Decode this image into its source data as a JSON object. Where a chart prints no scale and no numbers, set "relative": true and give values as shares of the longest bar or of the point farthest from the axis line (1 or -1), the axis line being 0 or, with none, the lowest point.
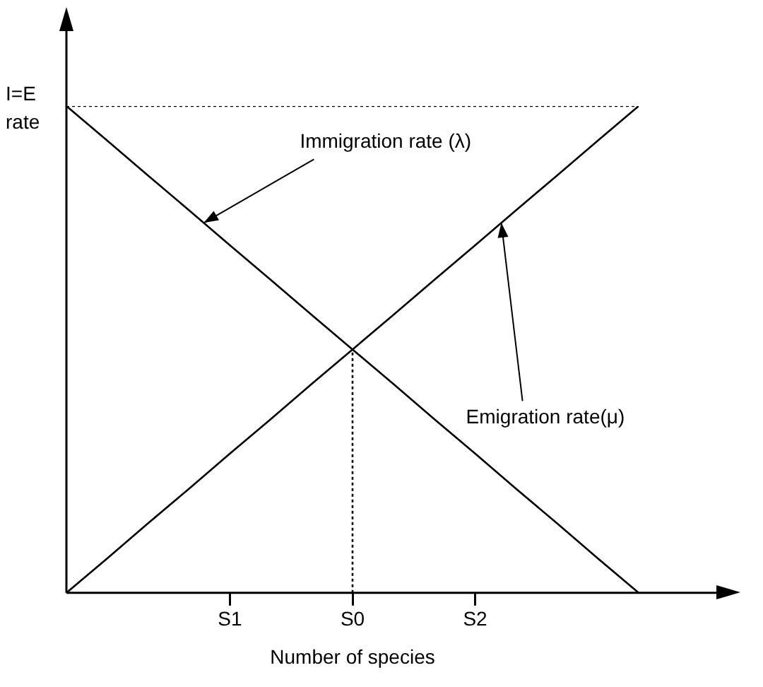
{
  "chart_data": {
    "type": "line",
    "relative": true,
    "xlabel": "Number of species",
    "ylabel": "I=E rate",
    "categories": [
      null,
      null,
      null,
      null,
      "S1",
      null,
      null,
      "S0",
      null,
      null,
      "S2",
      null,
      null,
      null,
      null
    ],
    "series": [
      {
        "color": "#000000",
        "values": [
          1,
          0.929,
          0.857,
          0.786,
          0.714,
          0.643,
          0.571,
          0.5,
          0.429,
          0.357,
          0.286,
          0.214,
          0.143,
          0.071,
          0
        ],
        "line_style": "solid"
      },
      {
        "color": "#000000",
        "values": [
          0,
          0.071,
          0.143,
          0.214,
          0.286,
          0.357,
          0.429,
          0.5,
          0.571,
          0.643,
          0.714,
          0.786,
          0.857,
          0.929,
          1
        ],
        "line_style": "solid"
      },
      {
        "color": "#000000",
        "values": [
          1,
          1,
          1,
          1,
          1,
          1,
          1,
          1,
          1,
          1,
          1,
          1,
          1,
          1,
          1
        ],
        "line_style": "dotted"
      },
      {
        "color": "#000000",
        "x": [
          "S0",
          "S0"
        ],
        "values": [
          0,
          0.5
        ],
        "line_style": "dotted"
      }
    ],
    "annotations": [
      "Immigration rate (λ)",
      "Emigration rate(μ)"
    ],
    "marker": "none",
    "grid": false,
    "legend": false
  }
}
